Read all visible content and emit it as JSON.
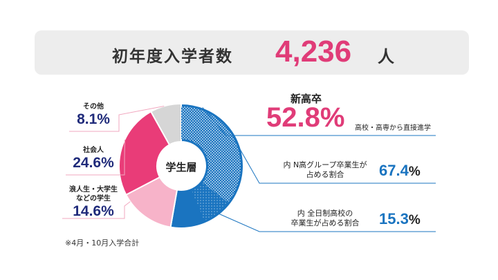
{
  "banner": {
    "label": "初年度入学者数",
    "value": "4,236",
    "unit": "人"
  },
  "chart_data": {
    "type": "pie",
    "center_label": "学生層",
    "slices": [
      {
        "label": "新高卒",
        "value": 52.8,
        "value_label": "52.8%",
        "color": "#1a74c0"
      },
      {
        "label": "浪人生・大学生などの学生",
        "value": 14.6,
        "value_label": "14.6%",
        "color": "#f7b3c9"
      },
      {
        "label": "社会人",
        "value": 24.6,
        "value_label": "24.6%",
        "color": "#e93c78"
      },
      {
        "label": "その他",
        "value": 8.1,
        "value_label": "8.1%",
        "color": "#d6d6d6"
      }
    ],
    "sub_slices": [
      {
        "parent": "新高卒",
        "label": "内 N高グループ卒業生が占める割合",
        "value": 67.4
      },
      {
        "parent": "新高卒",
        "label": "内 全日制高校の卒業生が占める割合",
        "value": 15.3
      }
    ]
  },
  "left_labels": {
    "other": {
      "name": "その他",
      "value": "8.1%"
    },
    "worker": {
      "name": "社会人",
      "value": "24.6%"
    },
    "student_line1": "浪人生・大学生",
    "student_line2": "などの学生",
    "student_value": "14.6%"
  },
  "right": {
    "heading": "新高卒",
    "main_value": "52.8%",
    "main_desc": "高校・高専から直接進学",
    "sub1_line1": "内 N高グループ卒業生が",
    "sub1_line2": "占める割合",
    "sub1_num": "67.4",
    "sub2_line1": "内 全日制高校の",
    "sub2_line2": "卒業生が占める割合",
    "sub2_num": "15.3",
    "pct": "%"
  },
  "note": "※4月・10月入学合計"
}
